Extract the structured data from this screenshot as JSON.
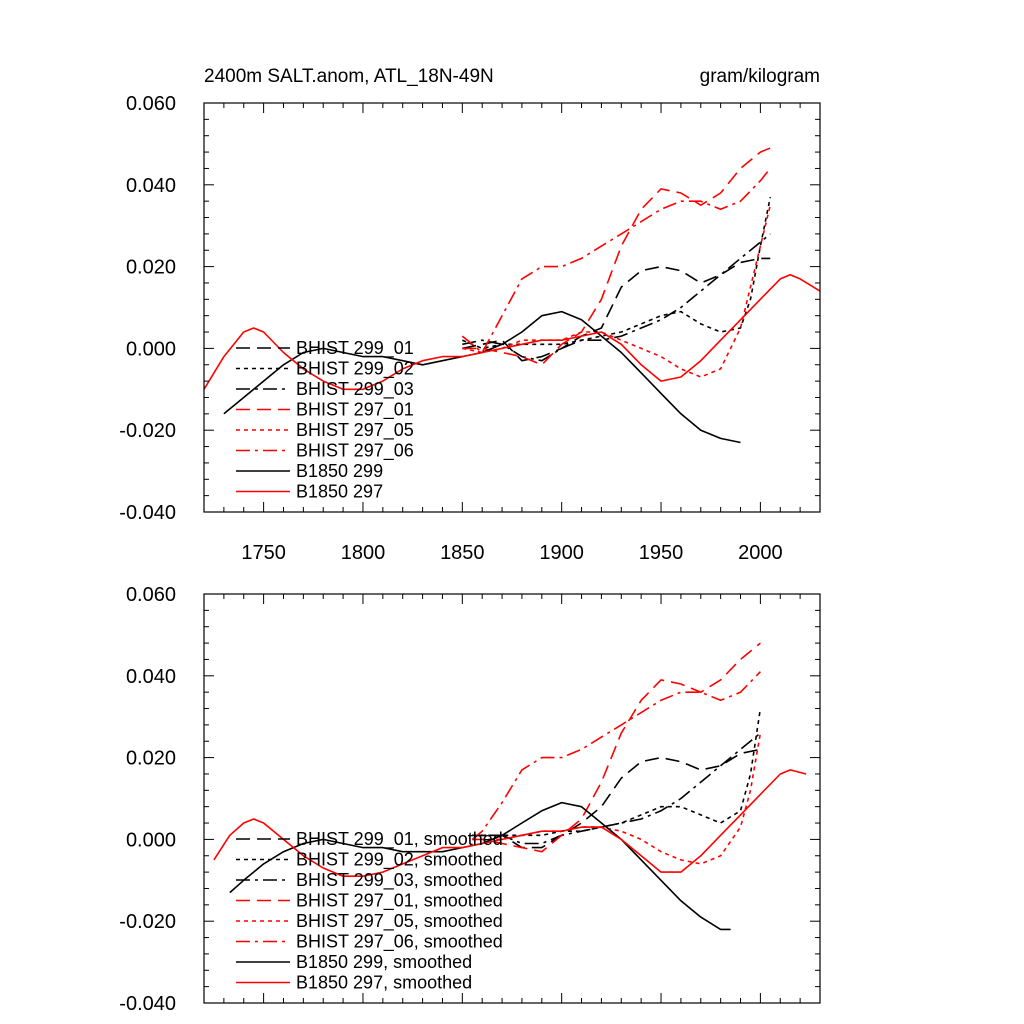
{
  "chart_data": [
    {
      "type": "line",
      "title": "2400m SALT.anom, ATL_18N-49N",
      "title_right": "gram/kilogram",
      "xlim": [
        1720,
        2030
      ],
      "ylim": [
        -0.04,
        0.06
      ],
      "xticks": [
        "1750",
        "1800",
        "1850",
        "1900",
        "1950",
        "2000"
      ],
      "yticks": [
        "0.060",
        "0.040",
        "0.020",
        "0.000",
        "-0.020",
        "-0.040"
      ],
      "legend_position": "lower-left",
      "series": [
        {
          "name": "BHIST 299_01",
          "color": "#000000",
          "dash": "dash",
          "x": [
            1850,
            1860,
            1870,
            1880,
            1890,
            1900,
            1910,
            1920,
            1930,
            1940,
            1950,
            1960,
            1970,
            1980,
            1990,
            2000,
            2005
          ],
          "y": [
            0.0,
            0.001,
            0.002,
            -0.003,
            -0.002,
            0.0,
            0.003,
            0.005,
            0.015,
            0.019,
            0.02,
            0.019,
            0.016,
            0.018,
            0.021,
            0.022,
            0.022
          ]
        },
        {
          "name": "BHIST 299_02",
          "color": "#000000",
          "dash": "dot",
          "x": [
            1850,
            1860,
            1870,
            1880,
            1890,
            1900,
            1910,
            1920,
            1930,
            1940,
            1950,
            1960,
            1970,
            1980,
            1990,
            1995,
            2000,
            2005
          ],
          "y": [
            0.002,
            0.0,
            0.001,
            0.001,
            0.001,
            0.001,
            0.002,
            0.003,
            0.004,
            0.006,
            0.008,
            0.009,
            0.006,
            0.004,
            0.005,
            0.012,
            0.025,
            0.037
          ]
        },
        {
          "name": "BHIST 299_03",
          "color": "#000000",
          "dash": "dashdot",
          "x": [
            1850,
            1860,
            1870,
            1880,
            1890,
            1900,
            1910,
            1920,
            1930,
            1940,
            1950,
            1960,
            1970,
            1980,
            1990,
            2000,
            2005
          ],
          "y": [
            0.001,
            0.002,
            0.001,
            -0.002,
            -0.003,
            0.0,
            0.002,
            0.002,
            0.003,
            0.005,
            0.007,
            0.01,
            0.014,
            0.018,
            0.022,
            0.026,
            0.028
          ]
        },
        {
          "name": "BHIST 297_01",
          "color": "#ff0000",
          "dash": "dash",
          "x": [
            1850,
            1860,
            1870,
            1880,
            1890,
            1900,
            1910,
            1920,
            1930,
            1940,
            1950,
            1960,
            1970,
            1980,
            1990,
            2000,
            2005
          ],
          "y": [
            0.0,
            0.0,
            -0.001,
            -0.002,
            -0.004,
            0.001,
            0.004,
            0.012,
            0.025,
            0.034,
            0.039,
            0.038,
            0.035,
            0.038,
            0.044,
            0.048,
            0.049
          ]
        },
        {
          "name": "BHIST 297_05",
          "color": "#ff0000",
          "dash": "dot",
          "x": [
            1850,
            1860,
            1870,
            1880,
            1890,
            1900,
            1910,
            1920,
            1930,
            1940,
            1950,
            1960,
            1970,
            1980,
            1990,
            2000,
            2005
          ],
          "y": [
            0.0,
            -0.001,
            0.0,
            0.002,
            0.002,
            0.002,
            0.004,
            0.004,
            0.002,
            0.0,
            -0.002,
            -0.005,
            -0.007,
            -0.005,
            0.005,
            0.025,
            0.035
          ]
        },
        {
          "name": "BHIST 297_06",
          "color": "#ff0000",
          "dash": "dashdot",
          "x": [
            1850,
            1860,
            1870,
            1880,
            1890,
            1900,
            1910,
            1920,
            1930,
            1940,
            1950,
            1960,
            1970,
            1980,
            1990,
            2000,
            2005
          ],
          "y": [
            0.003,
            -0.001,
            0.008,
            0.017,
            0.02,
            0.02,
            0.022,
            0.025,
            0.028,
            0.031,
            0.034,
            0.036,
            0.036,
            0.034,
            0.036,
            0.041,
            0.044
          ]
        },
        {
          "name": "B1850 299",
          "color": "#000000",
          "dash": "solid",
          "x": [
            1730,
            1740,
            1750,
            1760,
            1770,
            1780,
            1790,
            1800,
            1810,
            1820,
            1830,
            1840,
            1850,
            1860,
            1870,
            1880,
            1890,
            1900,
            1910,
            1920,
            1930,
            1940,
            1950,
            1960,
            1970,
            1980,
            1990
          ],
          "y": [
            -0.016,
            -0.012,
            -0.008,
            -0.004,
            -0.001,
            0.0,
            -0.001,
            -0.002,
            -0.002,
            -0.003,
            -0.004,
            -0.003,
            -0.002,
            -0.001,
            0.001,
            0.004,
            0.008,
            0.009,
            0.007,
            0.003,
            -0.001,
            -0.006,
            -0.011,
            -0.016,
            -0.02,
            -0.022,
            -0.023
          ]
        },
        {
          "name": "B1850 297",
          "color": "#ff0000",
          "dash": "solid",
          "x": [
            1720,
            1730,
            1740,
            1745,
            1750,
            1760,
            1770,
            1780,
            1790,
            1800,
            1810,
            1820,
            1830,
            1840,
            1850,
            1860,
            1870,
            1880,
            1890,
            1900,
            1910,
            1920,
            1930,
            1940,
            1950,
            1960,
            1970,
            1980,
            1990,
            2000,
            2010,
            2015,
            2020,
            2030
          ],
          "y": [
            -0.01,
            -0.002,
            0.004,
            0.005,
            0.004,
            -0.001,
            -0.005,
            -0.008,
            -0.01,
            -0.01,
            -0.008,
            -0.005,
            -0.003,
            -0.002,
            -0.002,
            -0.001,
            0.0,
            0.001,
            0.002,
            0.002,
            0.003,
            0.004,
            0.001,
            -0.004,
            -0.008,
            -0.007,
            -0.003,
            0.002,
            0.007,
            0.012,
            0.017,
            0.018,
            0.017,
            0.014
          ]
        }
      ]
    },
    {
      "type": "line",
      "xlim": [
        1720,
        2030
      ],
      "ylim": [
        -0.04,
        0.06
      ],
      "yticks": [
        "0.060",
        "0.040",
        "0.020",
        "0.000",
        "-0.020",
        "-0.040"
      ],
      "legend_position": "lower-left",
      "series": [
        {
          "name": "BHIST 299_01, smoothed",
          "color": "#000000",
          "dash": "dash",
          "x": [
            1855,
            1860,
            1870,
            1880,
            1890,
            1900,
            1910,
            1920,
            1930,
            1940,
            1950,
            1960,
            1970,
            1980,
            1990,
            2000
          ],
          "y": [
            0.001,
            0.001,
            0.001,
            -0.002,
            -0.002,
            0.001,
            0.004,
            0.008,
            0.015,
            0.019,
            0.02,
            0.019,
            0.017,
            0.018,
            0.021,
            0.022
          ]
        },
        {
          "name": "BHIST 299_02, smoothed",
          "color": "#000000",
          "dash": "dot",
          "x": [
            1855,
            1860,
            1870,
            1880,
            1890,
            1900,
            1910,
            1920,
            1930,
            1940,
            1950,
            1960,
            1970,
            1980,
            1990,
            1995,
            2000
          ],
          "y": [
            0.001,
            0.001,
            0.001,
            0.001,
            0.001,
            0.002,
            0.002,
            0.003,
            0.004,
            0.006,
            0.008,
            0.008,
            0.006,
            0.004,
            0.007,
            0.016,
            0.032
          ]
        },
        {
          "name": "BHIST 299_03, smoothed",
          "color": "#000000",
          "dash": "dashdot",
          "x": [
            1855,
            1860,
            1870,
            1880,
            1890,
            1900,
            1910,
            1920,
            1930,
            1940,
            1950,
            1960,
            1970,
            1980,
            1990,
            2000
          ],
          "y": [
            0.001,
            0.001,
            0.001,
            -0.001,
            -0.001,
            0.001,
            0.002,
            0.003,
            0.004,
            0.005,
            0.007,
            0.01,
            0.014,
            0.018,
            0.022,
            0.026
          ]
        },
        {
          "name": "BHIST 297_01, smoothed",
          "color": "#ff0000",
          "dash": "dash",
          "x": [
            1855,
            1860,
            1870,
            1880,
            1890,
            1900,
            1910,
            1920,
            1930,
            1940,
            1950,
            1960,
            1970,
            1980,
            1990,
            2000
          ],
          "y": [
            0.0,
            0.0,
            -0.001,
            -0.002,
            -0.003,
            0.001,
            0.005,
            0.014,
            0.026,
            0.034,
            0.039,
            0.038,
            0.036,
            0.039,
            0.044,
            0.048
          ]
        },
        {
          "name": "BHIST 297_05, smoothed",
          "color": "#ff0000",
          "dash": "dot",
          "x": [
            1855,
            1860,
            1870,
            1880,
            1890,
            1900,
            1910,
            1920,
            1930,
            1940,
            1950,
            1960,
            1970,
            1980,
            1990,
            1995,
            2000
          ],
          "y": [
            0.0,
            0.0,
            0.0,
            0.001,
            0.002,
            0.002,
            0.003,
            0.003,
            0.002,
            0.0,
            -0.003,
            -0.005,
            -0.006,
            -0.004,
            0.003,
            0.012,
            0.026
          ]
        },
        {
          "name": "BHIST 297_06, smoothed",
          "color": "#ff0000",
          "dash": "dashdot",
          "x": [
            1855,
            1860,
            1870,
            1880,
            1890,
            1900,
            1910,
            1920,
            1930,
            1940,
            1950,
            1960,
            1970,
            1980,
            1990,
            2000
          ],
          "y": [
            0.0,
            0.002,
            0.009,
            0.017,
            0.02,
            0.02,
            0.022,
            0.025,
            0.028,
            0.031,
            0.034,
            0.036,
            0.036,
            0.034,
            0.036,
            0.041
          ]
        },
        {
          "name": "B1850 299, smoothed",
          "color": "#000000",
          "dash": "solid",
          "x": [
            1733,
            1740,
            1750,
            1760,
            1770,
            1780,
            1790,
            1800,
            1810,
            1820,
            1830,
            1840,
            1850,
            1860,
            1870,
            1880,
            1890,
            1900,
            1910,
            1920,
            1930,
            1940,
            1950,
            1960,
            1970,
            1980,
            1985
          ],
          "y": [
            -0.013,
            -0.01,
            -0.006,
            -0.003,
            -0.001,
            0.0,
            -0.001,
            -0.002,
            -0.002,
            -0.003,
            -0.003,
            -0.003,
            -0.002,
            -0.001,
            0.001,
            0.004,
            0.007,
            0.009,
            0.008,
            0.004,
            0.0,
            -0.005,
            -0.01,
            -0.015,
            -0.019,
            -0.022,
            -0.022
          ]
        },
        {
          "name": "B1850 297, smoothed",
          "color": "#ff0000",
          "dash": "solid",
          "x": [
            1725,
            1733,
            1740,
            1745,
            1750,
            1760,
            1770,
            1780,
            1790,
            1800,
            1810,
            1820,
            1830,
            1840,
            1850,
            1860,
            1870,
            1880,
            1890,
            1900,
            1910,
            1920,
            1930,
            1940,
            1950,
            1960,
            1970,
            1980,
            1990,
            2000,
            2010,
            2015,
            2023
          ],
          "y": [
            -0.005,
            0.001,
            0.004,
            0.005,
            0.004,
            0.0,
            -0.004,
            -0.007,
            -0.009,
            -0.009,
            -0.008,
            -0.006,
            -0.004,
            -0.002,
            -0.002,
            -0.001,
            0.0,
            0.001,
            0.002,
            0.002,
            0.003,
            0.003,
            0.0,
            -0.004,
            -0.008,
            -0.008,
            -0.004,
            0.001,
            0.006,
            0.011,
            0.016,
            0.017,
            0.016
          ]
        }
      ]
    }
  ]
}
